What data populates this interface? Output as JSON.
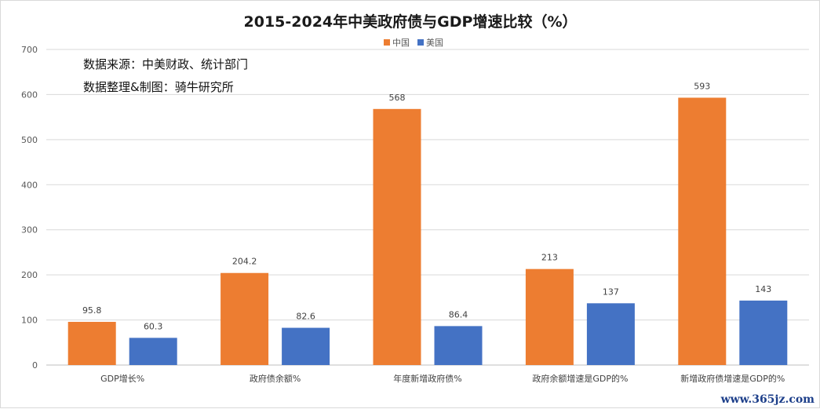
{
  "chart_data": {
    "type": "bar",
    "title": "2015-2024年中美政府债与GDP增速比较（%）",
    "categories": [
      "GDP增长%",
      "政府债余额%",
      "年度新增政府债%",
      "政府余额增速是GDP的%",
      "新增政府债增速是GDP的%"
    ],
    "series": [
      {
        "name": "中国",
        "color": "#ED7D31",
        "values": [
          95.8,
          204.2,
          568,
          213,
          593
        ]
      },
      {
        "name": "美国",
        "color": "#4472C4",
        "values": [
          60.3,
          82.6,
          86.4,
          137,
          143
        ]
      }
    ],
    "data_labels": [
      [
        "95.8",
        "204.2",
        "568",
        "213",
        "593"
      ],
      [
        "60.3",
        "82.6",
        "86.4",
        "137",
        "143"
      ]
    ],
    "ylim": [
      0,
      700
    ],
    "yticks": [
      0,
      100,
      200,
      300,
      400,
      500,
      600,
      700
    ],
    "grid": true,
    "legend_position": "top-center"
  },
  "annotations": {
    "source": "数据来源：中美财政、统计部门",
    "compiled": "数据整理&制图：骑牛研究所"
  },
  "watermark": "www.365jz.com"
}
